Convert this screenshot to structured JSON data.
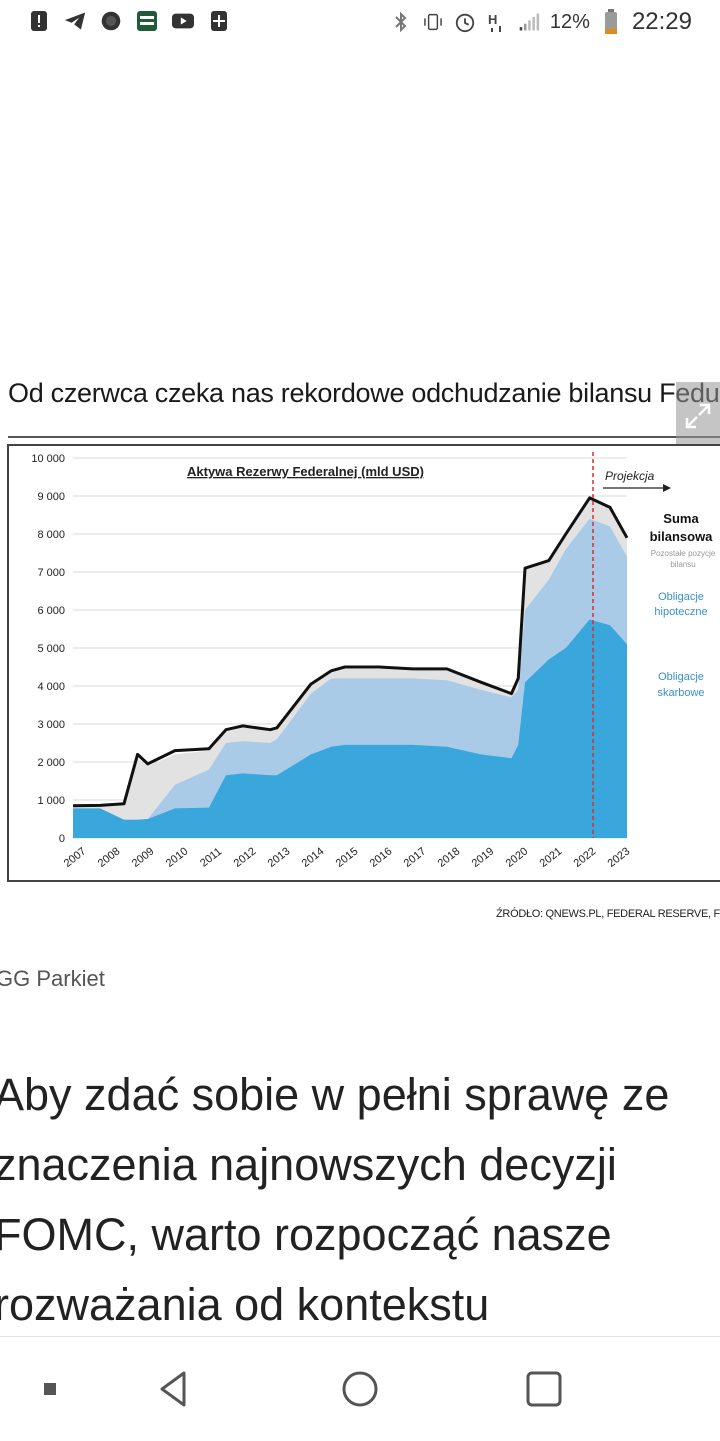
{
  "status_bar": {
    "battery_percent": "12%",
    "time": "22:29",
    "left_icons": [
      "alert-icon",
      "telegram-icon",
      "chat-bubble-icon",
      "app-icon",
      "youtube-icon",
      "plus-icon"
    ],
    "right_icons": [
      "bluetooth-icon",
      "vibrate-icon",
      "alarm-icon",
      "signal-h-icon",
      "cell-signal-icon",
      "battery-icon"
    ]
  },
  "figure": {
    "headline": "Od czerwca czeka nas rekordowe odchudzanie bilansu Fedu",
    "source": "ŹRÓDŁO: QNEWS.PL, FEDERAL RESERVE, FR",
    "caption": "GG Parkiet"
  },
  "article": {
    "lines": [
      "Aby zdać sobie w pełni sprawę ze",
      "znaczenia najnowszych decyzji",
      "FOMC, warto rozpocząć nasze",
      "rozważania od kontekstu"
    ]
  },
  "nav": {
    "icons": [
      "recents-dot-icon",
      "back-icon",
      "home-icon",
      "overview-icon"
    ]
  },
  "chart_data": {
    "type": "area",
    "title": "Aktywa Rezerwy Federalnej (mld USD)",
    "xlabel": "",
    "ylabel": "",
    "ylim": [
      0,
      10000
    ],
    "yticks": [
      "10 000",
      "9 000",
      "8 000",
      "7 000",
      "6 000",
      "5 000",
      "4 000",
      "3 000",
      "2 000",
      "1 000",
      "0"
    ],
    "x": [
      2007,
      2007.8,
      2008.5,
      2008.9,
      2009.2,
      2010,
      2011,
      2011.5,
      2012,
      2012.8,
      2013,
      2014,
      2014.6,
      2015,
      2016,
      2017,
      2018,
      2019,
      2019.9,
      2020.1,
      2020.3,
      2021,
      2021.5,
      2022.2,
      2022.8,
      2023.3
    ],
    "x_tick_labels": [
      "2007",
      "2008",
      "2009",
      "2010",
      "2011",
      "2012",
      "2013",
      "2014",
      "2015",
      "2016",
      "2017",
      "2018",
      "2019",
      "2020",
      "2021",
      "2022",
      "2023"
    ],
    "projection_start": 2022.3,
    "projection_label": "Projekcja",
    "series": [
      {
        "name": "Obligacje skarbowe",
        "color": "#3aa7dc",
        "values": [
          780,
          780,
          480,
          480,
          500,
          780,
          800,
          1650,
          1700,
          1650,
          1650,
          2200,
          2400,
          2450,
          2450,
          2450,
          2400,
          2200,
          2100,
          2450,
          4100,
          4700,
          5000,
          5750,
          5600,
          5100
        ]
      },
      {
        "name": "Obligacje hipoteczne",
        "color": "#a9cbe8",
        "values": [
          780,
          780,
          480,
          480,
          500,
          1400,
          1800,
          2500,
          2550,
          2500,
          2600,
          3800,
          4200,
          4200,
          4200,
          4200,
          4150,
          3900,
          3700,
          3900,
          6000,
          6800,
          7600,
          8400,
          8200,
          7400
        ]
      },
      {
        "name": "Pozostałe pozycje bilansu",
        "color": "#e2e2e2",
        "values": [
          850,
          860,
          900,
          2100,
          1900,
          2200,
          2300,
          2800,
          2900,
          2850,
          2900,
          4000,
          4350,
          4450,
          4450,
          4450,
          4400,
          4100,
          3800,
          4200,
          7100,
          7300,
          8000,
          8950,
          8700,
          7900
        ]
      },
      {
        "name": "Suma bilansowa",
        "color": "#111111",
        "values": [
          850,
          860,
          900,
          2200,
          1950,
          2300,
          2350,
          2850,
          2950,
          2850,
          2900,
          4050,
          4400,
          4500,
          4500,
          4450,
          4450,
          4100,
          3800,
          4200,
          7100,
          7300,
          8000,
          8950,
          8700,
          7900
        ]
      }
    ],
    "legend": {
      "total_label": "Suma bilansowa",
      "other_label": "Pozostałe pozycje bilansu",
      "mbs_label": "Obligacje hipoteczne",
      "treasury_label": "Obligacje skarbowe"
    }
  }
}
